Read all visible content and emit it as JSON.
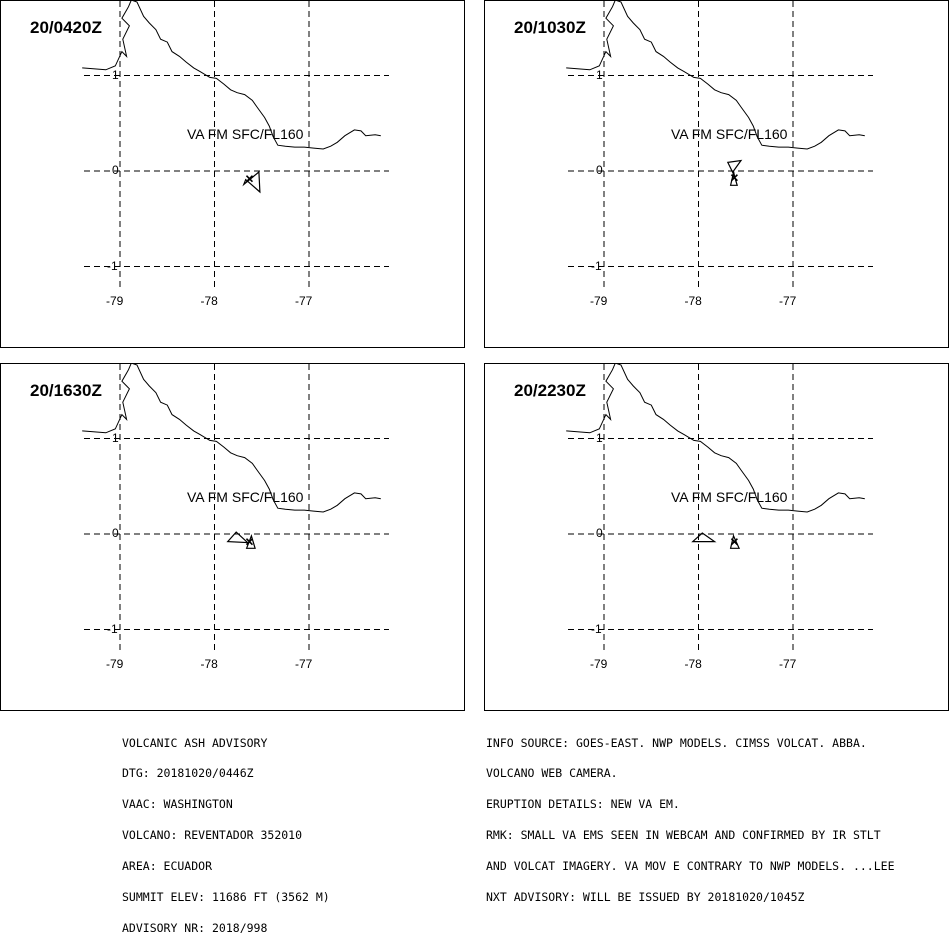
{
  "panels": [
    {
      "time": "20/0420Z",
      "label": "VA FM SFC/FL160",
      "polygons": [
        [
          [
            -77.52,
            -0.22
          ],
          [
            -77.67,
            -0.09
          ],
          [
            -77.69,
            -0.14
          ],
          [
            -77.53,
            -0.01
          ],
          [
            -77.52,
            -0.22
          ]
        ]
      ],
      "vent": [
        -77.63,
        -0.08
      ]
    },
    {
      "time": "20/1030Z",
      "label": "VA FM SFC/FL160",
      "polygons": [
        [
          [
            -77.69,
            0.09
          ],
          [
            -77.62,
            -0.05
          ],
          [
            -77.63,
            0.0
          ],
          [
            -77.55,
            0.11
          ],
          [
            -77.69,
            0.09
          ]
        ],
        [
          [
            -77.63,
            -0.02
          ],
          [
            -77.59,
            -0.15
          ],
          [
            -77.66,
            -0.15
          ],
          [
            -77.63,
            -0.02
          ]
        ]
      ],
      "vent": [
        -77.62,
        -0.07
      ]
    },
    {
      "time": "20/1630Z",
      "label": "VA FM SFC/FL160",
      "polygons": [
        [
          [
            -77.86,
            -0.08
          ],
          [
            -77.77,
            0.02
          ],
          [
            -77.65,
            -0.09
          ],
          [
            -77.86,
            -0.08
          ]
        ],
        [
          [
            -77.66,
            -0.15
          ],
          [
            -77.61,
            -0.02
          ],
          [
            -77.57,
            -0.15
          ],
          [
            -77.66,
            -0.15
          ]
        ]
      ],
      "vent": [
        -77.63,
        -0.08
      ]
    },
    {
      "time": "20/2230Z",
      "label": "VA FM SFC/FL160",
      "polygons": [
        [
          [
            -78.06,
            -0.08
          ],
          [
            -77.96,
            0.01
          ],
          [
            -77.83,
            -0.08
          ],
          [
            -78.06,
            -0.08
          ]
        ],
        [
          [
            -77.66,
            -0.15
          ],
          [
            -77.63,
            -0.02
          ],
          [
            -77.57,
            -0.15
          ],
          [
            -77.66,
            -0.15
          ]
        ]
      ],
      "vent": [
        -77.62,
        -0.08
      ]
    }
  ],
  "axes": {
    "lon_ticks": [
      "-79",
      "-78",
      "-77"
    ],
    "lat_ticks": [
      "1",
      "0",
      "-1"
    ],
    "lon_values": [
      -79,
      -78,
      -77
    ],
    "lat_values": [
      1,
      0,
      -1
    ],
    "lon_range": [
      -79.1,
      -76.2
    ],
    "lat_range": [
      -1.1,
      1.75
    ]
  },
  "coastline": [
    [
      -79.4,
      1.08
    ],
    [
      -79.15,
      1.06
    ],
    [
      -79.05,
      1.1
    ],
    [
      -78.98,
      1.25
    ],
    [
      -78.93,
      1.2
    ],
    [
      -78.97,
      1.38
    ],
    [
      -78.9,
      1.52
    ],
    [
      -78.98,
      1.6
    ],
    [
      -78.91,
      1.72
    ],
    [
      -78.88,
      1.79
    ],
    [
      -78.82,
      1.77
    ],
    [
      -78.75,
      1.62
    ],
    [
      -78.69,
      1.55
    ],
    [
      -78.62,
      1.48
    ],
    [
      -78.57,
      1.38
    ],
    [
      -78.5,
      1.35
    ],
    [
      -78.45,
      1.25
    ],
    [
      -78.37,
      1.2
    ],
    [
      -78.3,
      1.14
    ],
    [
      -78.22,
      1.08
    ],
    [
      -78.15,
      1.04
    ],
    [
      -78.05,
      0.98
    ],
    [
      -77.98,
      0.97
    ],
    [
      -77.9,
      0.91
    ],
    [
      -77.83,
      0.85
    ],
    [
      -77.76,
      0.82
    ],
    [
      -77.68,
      0.8
    ],
    [
      -77.6,
      0.74
    ],
    [
      -77.55,
      0.67
    ],
    [
      -77.47,
      0.56
    ],
    [
      -77.42,
      0.47
    ],
    [
      -77.38,
      0.36
    ],
    [
      -77.33,
      0.27
    ],
    [
      -77.25,
      0.26
    ],
    [
      -77.15,
      0.25
    ],
    [
      -77.05,
      0.25
    ],
    [
      -76.95,
      0.24
    ],
    [
      -76.85,
      0.23
    ],
    [
      -76.77,
      0.26
    ],
    [
      -76.7,
      0.3
    ],
    [
      -76.62,
      0.37
    ],
    [
      -76.52,
      0.43
    ],
    [
      -76.45,
      0.42
    ],
    [
      -76.4,
      0.37
    ],
    [
      -76.3,
      0.38
    ],
    [
      -76.24,
      0.37
    ]
  ],
  "advisory_left": [
    "VOLCANIC ASH ADVISORY",
    "DTG: 20181020/0446Z",
    "VAAC: WASHINGTON",
    "VOLCANO: REVENTADOR 352010",
    "AREA: ECUADOR",
    "SUMMIT ELEV: 11686 FT (3562 M)",
    "ADVISORY NR: 2018/998"
  ],
  "advisory_right": [
    "INFO SOURCE: GOES-EAST. NWP MODELS. CIMSS VOLCAT. ABBA.",
    "VOLCANO WEB CAMERA.",
    "ERUPTION DETAILS: NEW VA EM.",
    "RMK: SMALL VA EMS SEEN IN WEBCAM AND CONFIRMED BY IR STLT",
    "AND VOLCAT IMAGERY. VA MOV E CONTRARY TO NWP MODELS. ...LEE",
    "NXT ADVISORY: WILL BE ISSUED BY 20181020/1045Z"
  ]
}
